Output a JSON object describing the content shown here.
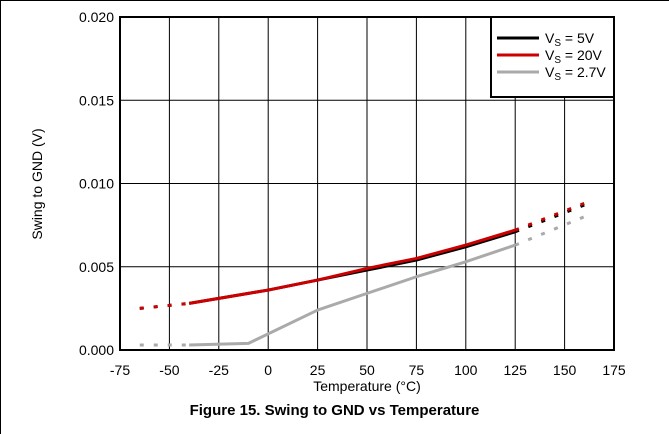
{
  "figure": {
    "caption": "Figure 15. Swing to GND vs Temperature"
  },
  "chart_data": {
    "type": "line",
    "title": "",
    "xlabel": "Temperature (°C)",
    "ylabel": "Swing to GND (V)",
    "xlim": [
      -75,
      175
    ],
    "ylim": [
      0.0,
      0.02
    ],
    "x_ticks": [
      -75,
      -50,
      -25,
      0,
      25,
      50,
      75,
      100,
      125,
      150,
      175
    ],
    "x_tick_labels": [
      "-75",
      "-50",
      "-25",
      "0",
      "25",
      "50",
      "75",
      "100",
      "125",
      "150",
      "175"
    ],
    "y_ticks": [
      0.0,
      0.005,
      0.01,
      0.015,
      0.02
    ],
    "y_tick_labels": [
      "0.000",
      "0.005",
      "0.010",
      "0.015",
      "0.020"
    ],
    "grid": true,
    "legend_position": "top-right",
    "series": [
      {
        "name": "V_S = 5V",
        "legend_main": "V",
        "legend_sub": "S",
        "legend_rest": " = 5V",
        "color": "#000000",
        "x": [
          -40,
          -25,
          -10,
          0,
          25,
          50,
          75,
          100,
          125
        ],
        "y": [
          0.0028,
          0.0031,
          0.0034,
          0.0036,
          0.0042,
          0.0048,
          0.0054,
          0.0062,
          0.0071
        ],
        "extrapolated_x": [
          [
            -65,
            -40
          ],
          [
            125,
            162
          ]
        ],
        "extrapolated_y": [
          [
            0.0025,
            0.0028
          ],
          [
            0.0071,
            0.0088
          ]
        ]
      },
      {
        "name": "V_S = 20V",
        "legend_main": "V",
        "legend_sub": "S",
        "legend_rest": " = 20V",
        "color": "#cc0000",
        "x": [
          -40,
          -25,
          -10,
          0,
          25,
          50,
          75,
          100,
          125
        ],
        "y": [
          0.0028,
          0.0031,
          0.0034,
          0.0036,
          0.0042,
          0.0049,
          0.0055,
          0.0063,
          0.0072
        ],
        "extrapolated_x": [
          [
            -65,
            -40
          ],
          [
            125,
            162
          ]
        ],
        "extrapolated_y": [
          [
            0.0025,
            0.0028
          ],
          [
            0.0072,
            0.0089
          ]
        ]
      },
      {
        "name": "V_S = 2.7V",
        "legend_main": "V",
        "legend_sub": "S",
        "legend_rest": " = 2.7V",
        "color": "#aaaaaa",
        "x": [
          -40,
          -10,
          25,
          50,
          75,
          100,
          125
        ],
        "y": [
          0.0003,
          0.0004,
          0.0024,
          0.0034,
          0.0044,
          0.0053,
          0.0063
        ],
        "extrapolated_x": [
          [
            -65,
            -40
          ],
          [
            125,
            162
          ]
        ],
        "extrapolated_y": [
          [
            0.0003,
            0.0003
          ],
          [
            0.0063,
            0.0081
          ]
        ]
      }
    ]
  }
}
